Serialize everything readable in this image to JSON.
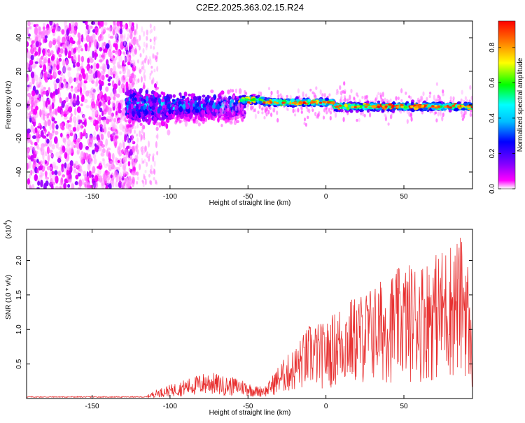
{
  "title": "C2E2.2025.363.02.15.R24",
  "chart_data": [
    {
      "type": "heatmap",
      "title": "C2E2.2025.363.02.15.R24",
      "xlabel": "Height of straight line (km)",
      "ylabel": "Frequency (Hz)",
      "xlim": [
        -192,
        94
      ],
      "ylim": [
        -50,
        50
      ],
      "x_ticks": [
        -150,
        -100,
        -50,
        0,
        50
      ],
      "x_tick_labels": [
        "-150",
        "-100",
        "-50",
        "0",
        "50"
      ],
      "y_ticks": [
        -40,
        -20,
        0,
        20,
        40
      ],
      "y_tick_labels": [
        "-40",
        "-20",
        "0",
        "20",
        "40"
      ],
      "colorbar": {
        "label": "Normalized spectral amplitude",
        "range": [
          0.0,
          0.95
        ],
        "ticks": [
          0.0,
          0.2,
          0.4,
          0.6,
          0.8
        ],
        "tick_labels": [
          "0.0",
          "0.2",
          "0.4",
          "0.6",
          "0.8"
        ],
        "colormap": [
          "#ffffff",
          "#ff00ff",
          "#8000ff",
          "#0000ff",
          "#00ffff",
          "#00ff00",
          "#ffff00",
          "#ff8000",
          "#ff0000"
        ]
      },
      "regions": [
        {
          "x_range": [
            -192,
            -125
          ],
          "freq_spread": 50,
          "amplitude": 0.15,
          "description": "scattered noise"
        },
        {
          "x_range": [
            -125,
            -55
          ],
          "freq_center": -2,
          "freq_spread": 15,
          "amplitude": 0.3
        },
        {
          "x_range": [
            -55,
            94
          ],
          "freq_center": 0,
          "freq_spread": 3,
          "amplitude": 0.7,
          "peak_amplitude": 0.95
        }
      ]
    },
    {
      "type": "line",
      "xlabel": "Height of straight line (km)",
      "ylabel": "SNR (10 * v/v)",
      "y_multiplier": "(x10",
      "y_multiplier_exp": "4",
      "y_multiplier_close": ")",
      "xlim": [
        -192,
        94
      ],
      "ylim": [
        0,
        2.45
      ],
      "x_ticks": [
        -150,
        -100,
        -50,
        0,
        50
      ],
      "x_tick_labels": [
        "-150",
        "-100",
        "-50",
        "0",
        "50"
      ],
      "y_ticks": [
        0.5,
        1.0,
        1.5,
        2.0
      ],
      "y_tick_labels": [
        "0.5",
        "1.0",
        "1.5",
        "2.0"
      ],
      "series": [
        {
          "name": "SNR",
          "color": "#e83030",
          "envelope": [
            {
              "x": -192,
              "y": 0.02
            },
            {
              "x": -115,
              "y": 0.04
            },
            {
              "x": -110,
              "y": 0.12
            },
            {
              "x": -100,
              "y": 0.2
            },
            {
              "x": -85,
              "y": 0.32
            },
            {
              "x": -75,
              "y": 0.4
            },
            {
              "x": -65,
              "y": 0.32
            },
            {
              "x": -55,
              "y": 0.3
            },
            {
              "x": -45,
              "y": 0.18
            },
            {
              "x": -38,
              "y": 0.2
            },
            {
              "x": -30,
              "y": 0.5
            },
            {
              "x": -20,
              "y": 0.75
            },
            {
              "x": -10,
              "y": 1.1
            },
            {
              "x": 0,
              "y": 1.1
            },
            {
              "x": 10,
              "y": 1.4
            },
            {
              "x": 20,
              "y": 1.5
            },
            {
              "x": 30,
              "y": 1.65
            },
            {
              "x": 40,
              "y": 1.8
            },
            {
              "x": 50,
              "y": 1.95
            },
            {
              "x": 60,
              "y": 2.0
            },
            {
              "x": 70,
              "y": 2.1
            },
            {
              "x": 80,
              "y": 2.3
            },
            {
              "x": 90,
              "y": 2.4
            },
            {
              "x": 94,
              "y": 0.8
            }
          ]
        }
      ]
    }
  ]
}
